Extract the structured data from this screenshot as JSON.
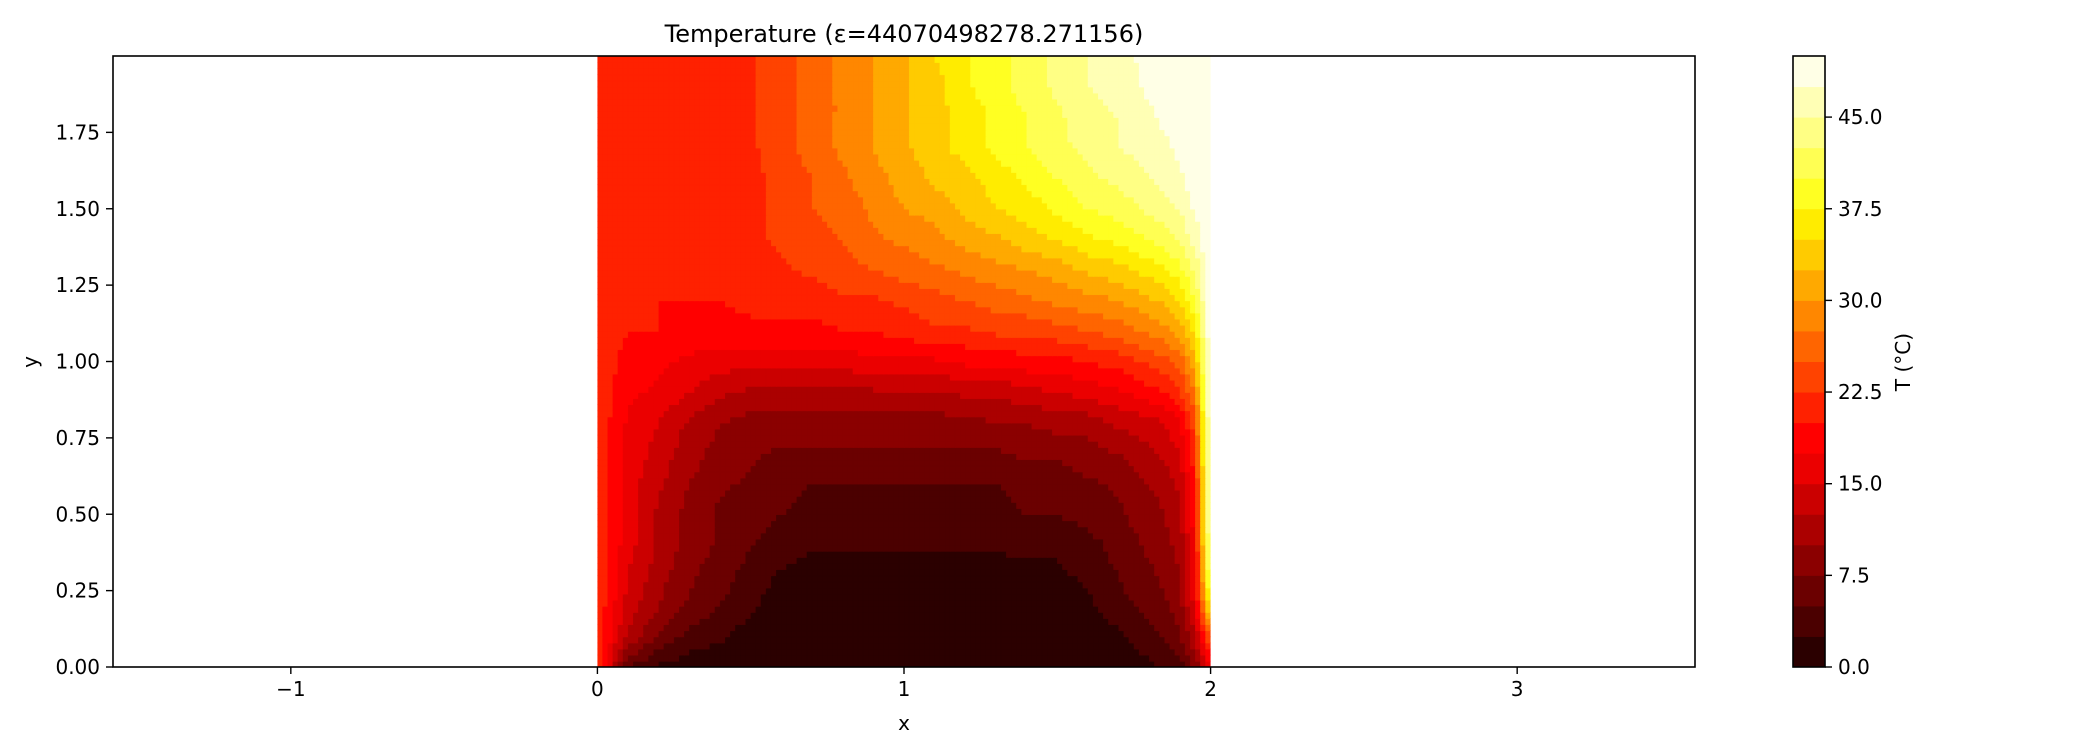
{
  "chart_data": {
    "type": "heatmap",
    "title": "Temperature (ε=44070498278.271156)",
    "xlabel": "x",
    "ylabel": "y",
    "xlim": [
      -1.58,
      3.58
    ],
    "ylim": [
      0.0,
      2.0
    ],
    "domain": {
      "x": [
        0.0,
        2.0
      ],
      "y": [
        0.0,
        2.0
      ]
    },
    "xticks": [
      {
        "value": -1,
        "label": "−1"
      },
      {
        "value": 0,
        "label": "0"
      },
      {
        "value": 1,
        "label": "1"
      },
      {
        "value": 2,
        "label": "2"
      },
      {
        "value": 3,
        "label": "3"
      }
    ],
    "yticks": [
      {
        "value": 0.0,
        "label": "0.00"
      },
      {
        "value": 0.25,
        "label": "0.25"
      },
      {
        "value": 0.5,
        "label": "0.50"
      },
      {
        "value": 0.75,
        "label": "0.75"
      },
      {
        "value": 1.0,
        "label": "1.00"
      },
      {
        "value": 1.25,
        "label": "1.25"
      },
      {
        "value": 1.5,
        "label": "1.50"
      },
      {
        "value": 1.75,
        "label": "1.75"
      }
    ],
    "colorbar": {
      "label": "T (°C)",
      "min": 0.0,
      "max": 50.0,
      "levels": 20,
      "ticks": [
        {
          "value": 0.0,
          "label": "0.0"
        },
        {
          "value": 7.5,
          "label": "7.5"
        },
        {
          "value": 15.0,
          "label": "15.0"
        },
        {
          "value": 22.5,
          "label": "22.5"
        },
        {
          "value": 30.0,
          "label": "30.0"
        },
        {
          "value": 37.5,
          "label": "37.5"
        },
        {
          "value": 45.0,
          "label": "45.0"
        }
      ]
    },
    "colormap": "hot",
    "field_rows_y": [
      0.0,
      0.1,
      0.2,
      0.3,
      0.4,
      0.5,
      0.6,
      0.7,
      0.8,
      0.9,
      1.0,
      1.1,
      1.2,
      1.3,
      1.4,
      1.5,
      1.6,
      1.7,
      1.8,
      1.9,
      2.0
    ],
    "field_cols_x": [
      0.0,
      0.1,
      0.2,
      0.3,
      0.4,
      0.5,
      0.6,
      0.7,
      0.8,
      0.9,
      1.0,
      1.1,
      1.2,
      1.3,
      1.4,
      1.5,
      1.6,
      1.7,
      1.8,
      1.85,
      1.9,
      1.95,
      2.0
    ],
    "field": [
      [
        22,
        5,
        2,
        1,
        0,
        0,
        0,
        0,
        0,
        0,
        0,
        0,
        0,
        0,
        0,
        0,
        0,
        1,
        2,
        3,
        4,
        8,
        17
      ],
      [
        22,
        12,
        7,
        4,
        3,
        1,
        0,
        0,
        0,
        0,
        0,
        0,
        0,
        0,
        0,
        0,
        1,
        2,
        4,
        5,
        7,
        12,
        26
      ],
      [
        22,
        14,
        10,
        7,
        5,
        3,
        1,
        0,
        0,
        0,
        0,
        0,
        0,
        0,
        1,
        1,
        2,
        4,
        6,
        7,
        9,
        16,
        38
      ],
      [
        22,
        15,
        11,
        8,
        6,
        4,
        2,
        1,
        1,
        1,
        1,
        1,
        1,
        1,
        2,
        2,
        3,
        5,
        7,
        8,
        10,
        17,
        44
      ],
      [
        22,
        16,
        12,
        9,
        7,
        5,
        4,
        3,
        3,
        3,
        3,
        3,
        3,
        3,
        3,
        3,
        4,
        6,
        8,
        9,
        11,
        18,
        47
      ],
      [
        22,
        16,
        12,
        9,
        7,
        6,
        5,
        4,
        4,
        4,
        4,
        4,
        4,
        4,
        5,
        5,
        6,
        7,
        9,
        10,
        12,
        19,
        48
      ],
      [
        22,
        16,
        13,
        10,
        8,
        7,
        6,
        5,
        5,
        5,
        5,
        5,
        5,
        5,
        6,
        6,
        7,
        8,
        10,
        11,
        13,
        20,
        48
      ],
      [
        22,
        17,
        14,
        11,
        9,
        8,
        7,
        7,
        7,
        7,
        7,
        7,
        7,
        7,
        8,
        8,
        9,
        10,
        12,
        13,
        15,
        22,
        49
      ],
      [
        22,
        17,
        15,
        12,
        10,
        9,
        9,
        9,
        9,
        9,
        9,
        9,
        9,
        10,
        10,
        11,
        11,
        13,
        14,
        15,
        17,
        24,
        49
      ],
      [
        22,
        18,
        17,
        15,
        13,
        12,
        12,
        12,
        12,
        12,
        12,
        12,
        13,
        13,
        14,
        15,
        16,
        17,
        19,
        20,
        22,
        28,
        49
      ],
      [
        22,
        19,
        18,
        17,
        16,
        16,
        16,
        16,
        16,
        17,
        17,
        17,
        18,
        18,
        19,
        19,
        20,
        21,
        23,
        24,
        26,
        32,
        50
      ],
      [
        22,
        20,
        20,
        19,
        19,
        19,
        19,
        19,
        20,
        20,
        21,
        22,
        22,
        23,
        23,
        24,
        25,
        26,
        28,
        29,
        31,
        36,
        50
      ],
      [
        22,
        20,
        20,
        20,
        20,
        21,
        21,
        21,
        22,
        22,
        23,
        24,
        25,
        26,
        27,
        28,
        29,
        30,
        32,
        33,
        35,
        40,
        50
      ],
      [
        22,
        20,
        20,
        20,
        20,
        21,
        22,
        23,
        24,
        25,
        26,
        27,
        28,
        29,
        30,
        31,
        33,
        34,
        36,
        37,
        39,
        43,
        50
      ],
      [
        21,
        20,
        20,
        20,
        21,
        22,
        23,
        24,
        25,
        27,
        28,
        29,
        31,
        32,
        34,
        35,
        37,
        38,
        40,
        41,
        43,
        46,
        50
      ],
      [
        21,
        20,
        20,
        20,
        21,
        22,
        23,
        25,
        26,
        28,
        30,
        31,
        33,
        35,
        36,
        38,
        40,
        41,
        43,
        44,
        45,
        48,
        50
      ],
      [
        21,
        20,
        20,
        20,
        21,
        22,
        23,
        25,
        27,
        29,
        31,
        33,
        34,
        36,
        38,
        40,
        42,
        43,
        45,
        46,
        47,
        49,
        50
      ],
      [
        21,
        20,
        20,
        20,
        21,
        22,
        24,
        26,
        28,
        30,
        32,
        34,
        36,
        38,
        40,
        42,
        43,
        45,
        46,
        47,
        48,
        49,
        50
      ],
      [
        21,
        20,
        20,
        20,
        21,
        22,
        24,
        26,
        28,
        30,
        32,
        34,
        36,
        38,
        40,
        42,
        44,
        45,
        47,
        48,
        49,
        50,
        50
      ],
      [
        21,
        20,
        20,
        20,
        21,
        22,
        24,
        26,
        28,
        30,
        32,
        34,
        37,
        39,
        41,
        43,
        45,
        46,
        48,
        48,
        49,
        50,
        50
      ],
      [
        21,
        20,
        20,
        20,
        21,
        22,
        24,
        26,
        28,
        30,
        32,
        35,
        37,
        39,
        41,
        43,
        45,
        47,
        48,
        49,
        49,
        50,
        50
      ]
    ]
  }
}
